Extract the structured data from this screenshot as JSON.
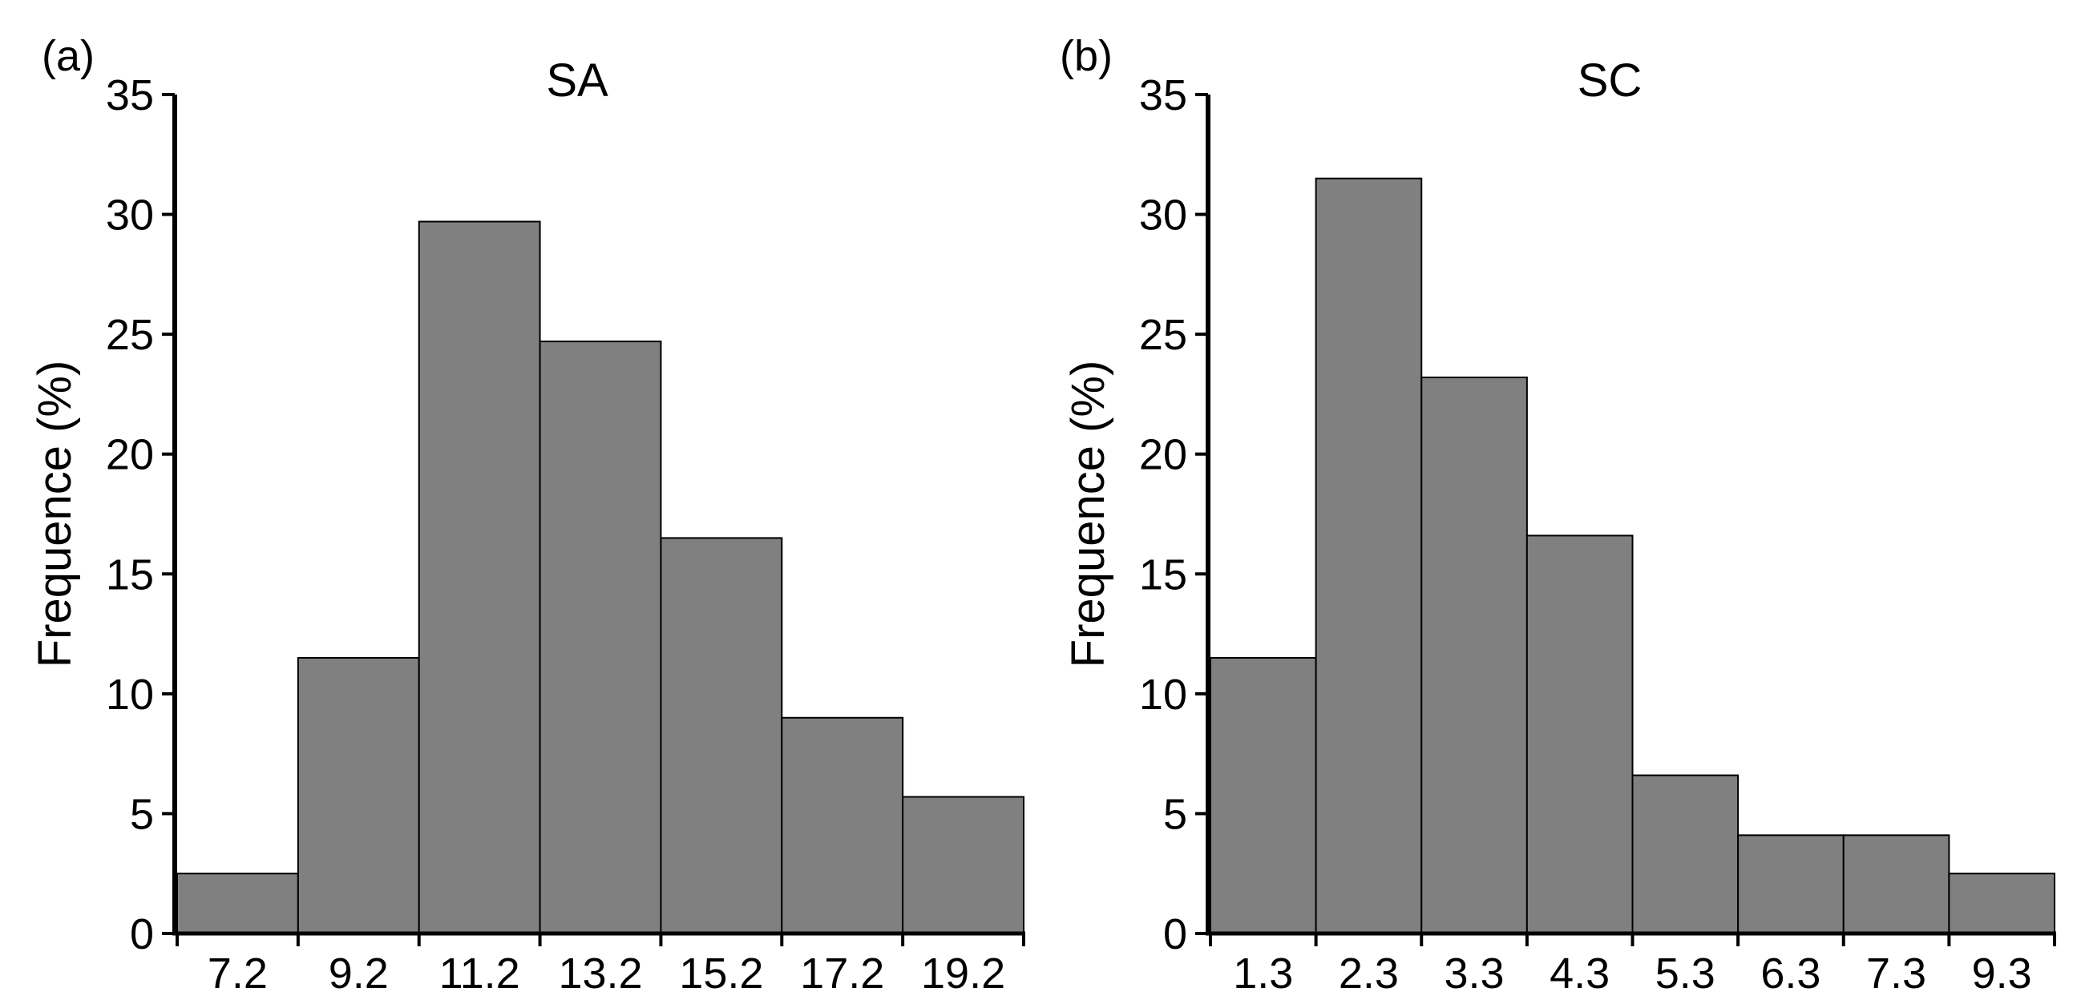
{
  "chart_data": [
    {
      "type": "bar",
      "panel_label": "(a)",
      "title": "SA",
      "xlabel": "",
      "ylabel": "Frequence (%)",
      "categories": [
        "7.2",
        "9.2",
        "11.2",
        "13.2",
        "15.2",
        "17.2",
        "19.2"
      ],
      "values": [
        2.5,
        11.5,
        29.7,
        24.7,
        16.5,
        9.0,
        5.7
      ],
      "yticks": [
        "0",
        "5",
        "10",
        "15",
        "20",
        "25",
        "30",
        "35"
      ],
      "ylim": [
        0,
        35
      ],
      "grid": false,
      "legend": "none",
      "bar_color": "#808080"
    },
    {
      "type": "bar",
      "panel_label": "(b)",
      "title": "SC",
      "xlabel": "",
      "ylabel": "Frequence (%)",
      "categories": [
        "1.3",
        "2.3",
        "3.3",
        "4.3",
        "5.3",
        "6.3",
        "7.3",
        "9.3"
      ],
      "values": [
        11.5,
        31.5,
        23.2,
        16.6,
        6.6,
        4.1,
        4.1,
        2.5
      ],
      "yticks": [
        "0",
        "5",
        "10",
        "15",
        "20",
        "25",
        "30",
        "35"
      ],
      "ylim": [
        0,
        35
      ],
      "grid": false,
      "legend": "none",
      "bar_color": "#808080"
    }
  ]
}
